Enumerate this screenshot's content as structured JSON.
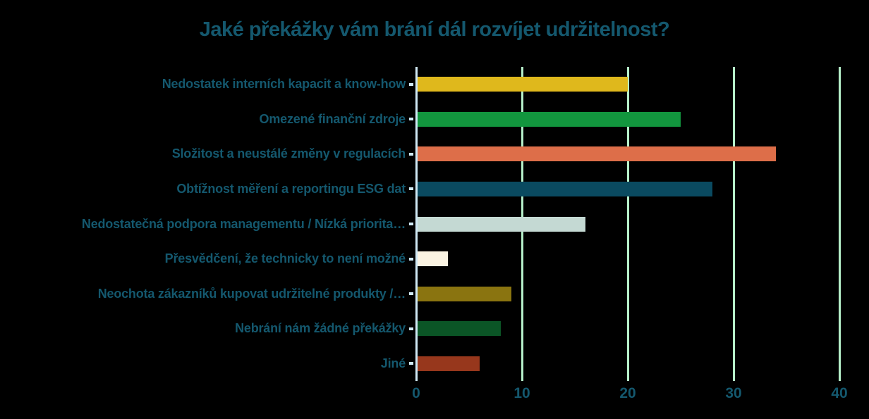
{
  "colors": {
    "background": "#000000",
    "text": "#14586e",
    "axis_line": "#cfe8f4",
    "gridline": "#b5efc9"
  },
  "chart_data": {
    "type": "bar",
    "orientation": "horizontal",
    "title": "Jaké překážky vám brání dál rozvíjet udržitelnost?",
    "categories": [
      "Nedostatek interních kapacit a know-how",
      "Omezené finanční zdroje",
      "Složitost a neustálé změny v regulacích",
      "Obtížnost měření a reportingu ESG dat",
      "Nedostatečná podpora managementu / Nízká priorita…",
      "Přesvědčení, že technicky to není možné",
      "Neochota zákazníků kupovat udržitelné produkty /…",
      "Nebrání nám žádné překážky",
      "Jiné"
    ],
    "values": [
      20,
      25,
      34,
      28,
      16,
      3,
      9,
      8,
      6
    ],
    "bar_colors": [
      "#dfb81c",
      "#12963e",
      "#dd6e49",
      "#0a4a60",
      "#c4d9d3",
      "#faf3e2",
      "#8a7410",
      "#0b5526",
      "#97371c"
    ],
    "xlabel": "",
    "ylabel": "",
    "x_ticks": [
      0,
      10,
      20,
      30,
      40
    ],
    "xlim": [
      0,
      40
    ],
    "grid": true,
    "legend": false
  }
}
